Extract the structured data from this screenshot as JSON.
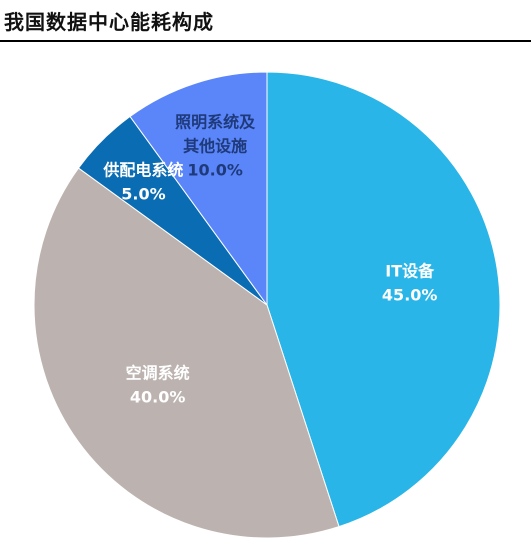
{
  "title": "我国数据中心能耗构成",
  "chart_data": {
    "type": "pie",
    "title": "我国数据中心能耗构成",
    "slices": [
      {
        "name": "IT设备",
        "value": 45.0,
        "label": "45.0%",
        "color": "#29B5E8",
        "label_color": "#ffffff"
      },
      {
        "name": "空调系统",
        "value": 40.0,
        "label": "40.0%",
        "color": "#BCB3B0",
        "label_color": "#ffffff"
      },
      {
        "name": "供配电系统",
        "value": 5.0,
        "label": "5.0%",
        "color": "#0A6CB2",
        "label_color": "#ffffff"
      },
      {
        "name": "照明系统及其他设施",
        "name_lines": [
          "照明系统及",
          "其他设施"
        ],
        "value": 10.0,
        "label": "10.0%",
        "color": "#5B86FA",
        "label_color": "#1F3A7A"
      }
    ],
    "start_angle_deg": 0,
    "direction": "clockwise",
    "legend": "none"
  }
}
